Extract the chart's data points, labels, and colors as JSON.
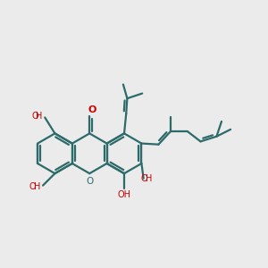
{
  "bg_color": "#ebebeb",
  "bond_color": "#2d6b6b",
  "o_color": "#cc0000",
  "linewidth": 1.6,
  "figsize": [
    3.0,
    3.0
  ],
  "dpi": 100,
  "xlim": [
    -1.6,
    3.2
  ],
  "ylim": [
    -1.3,
    2.0
  ]
}
